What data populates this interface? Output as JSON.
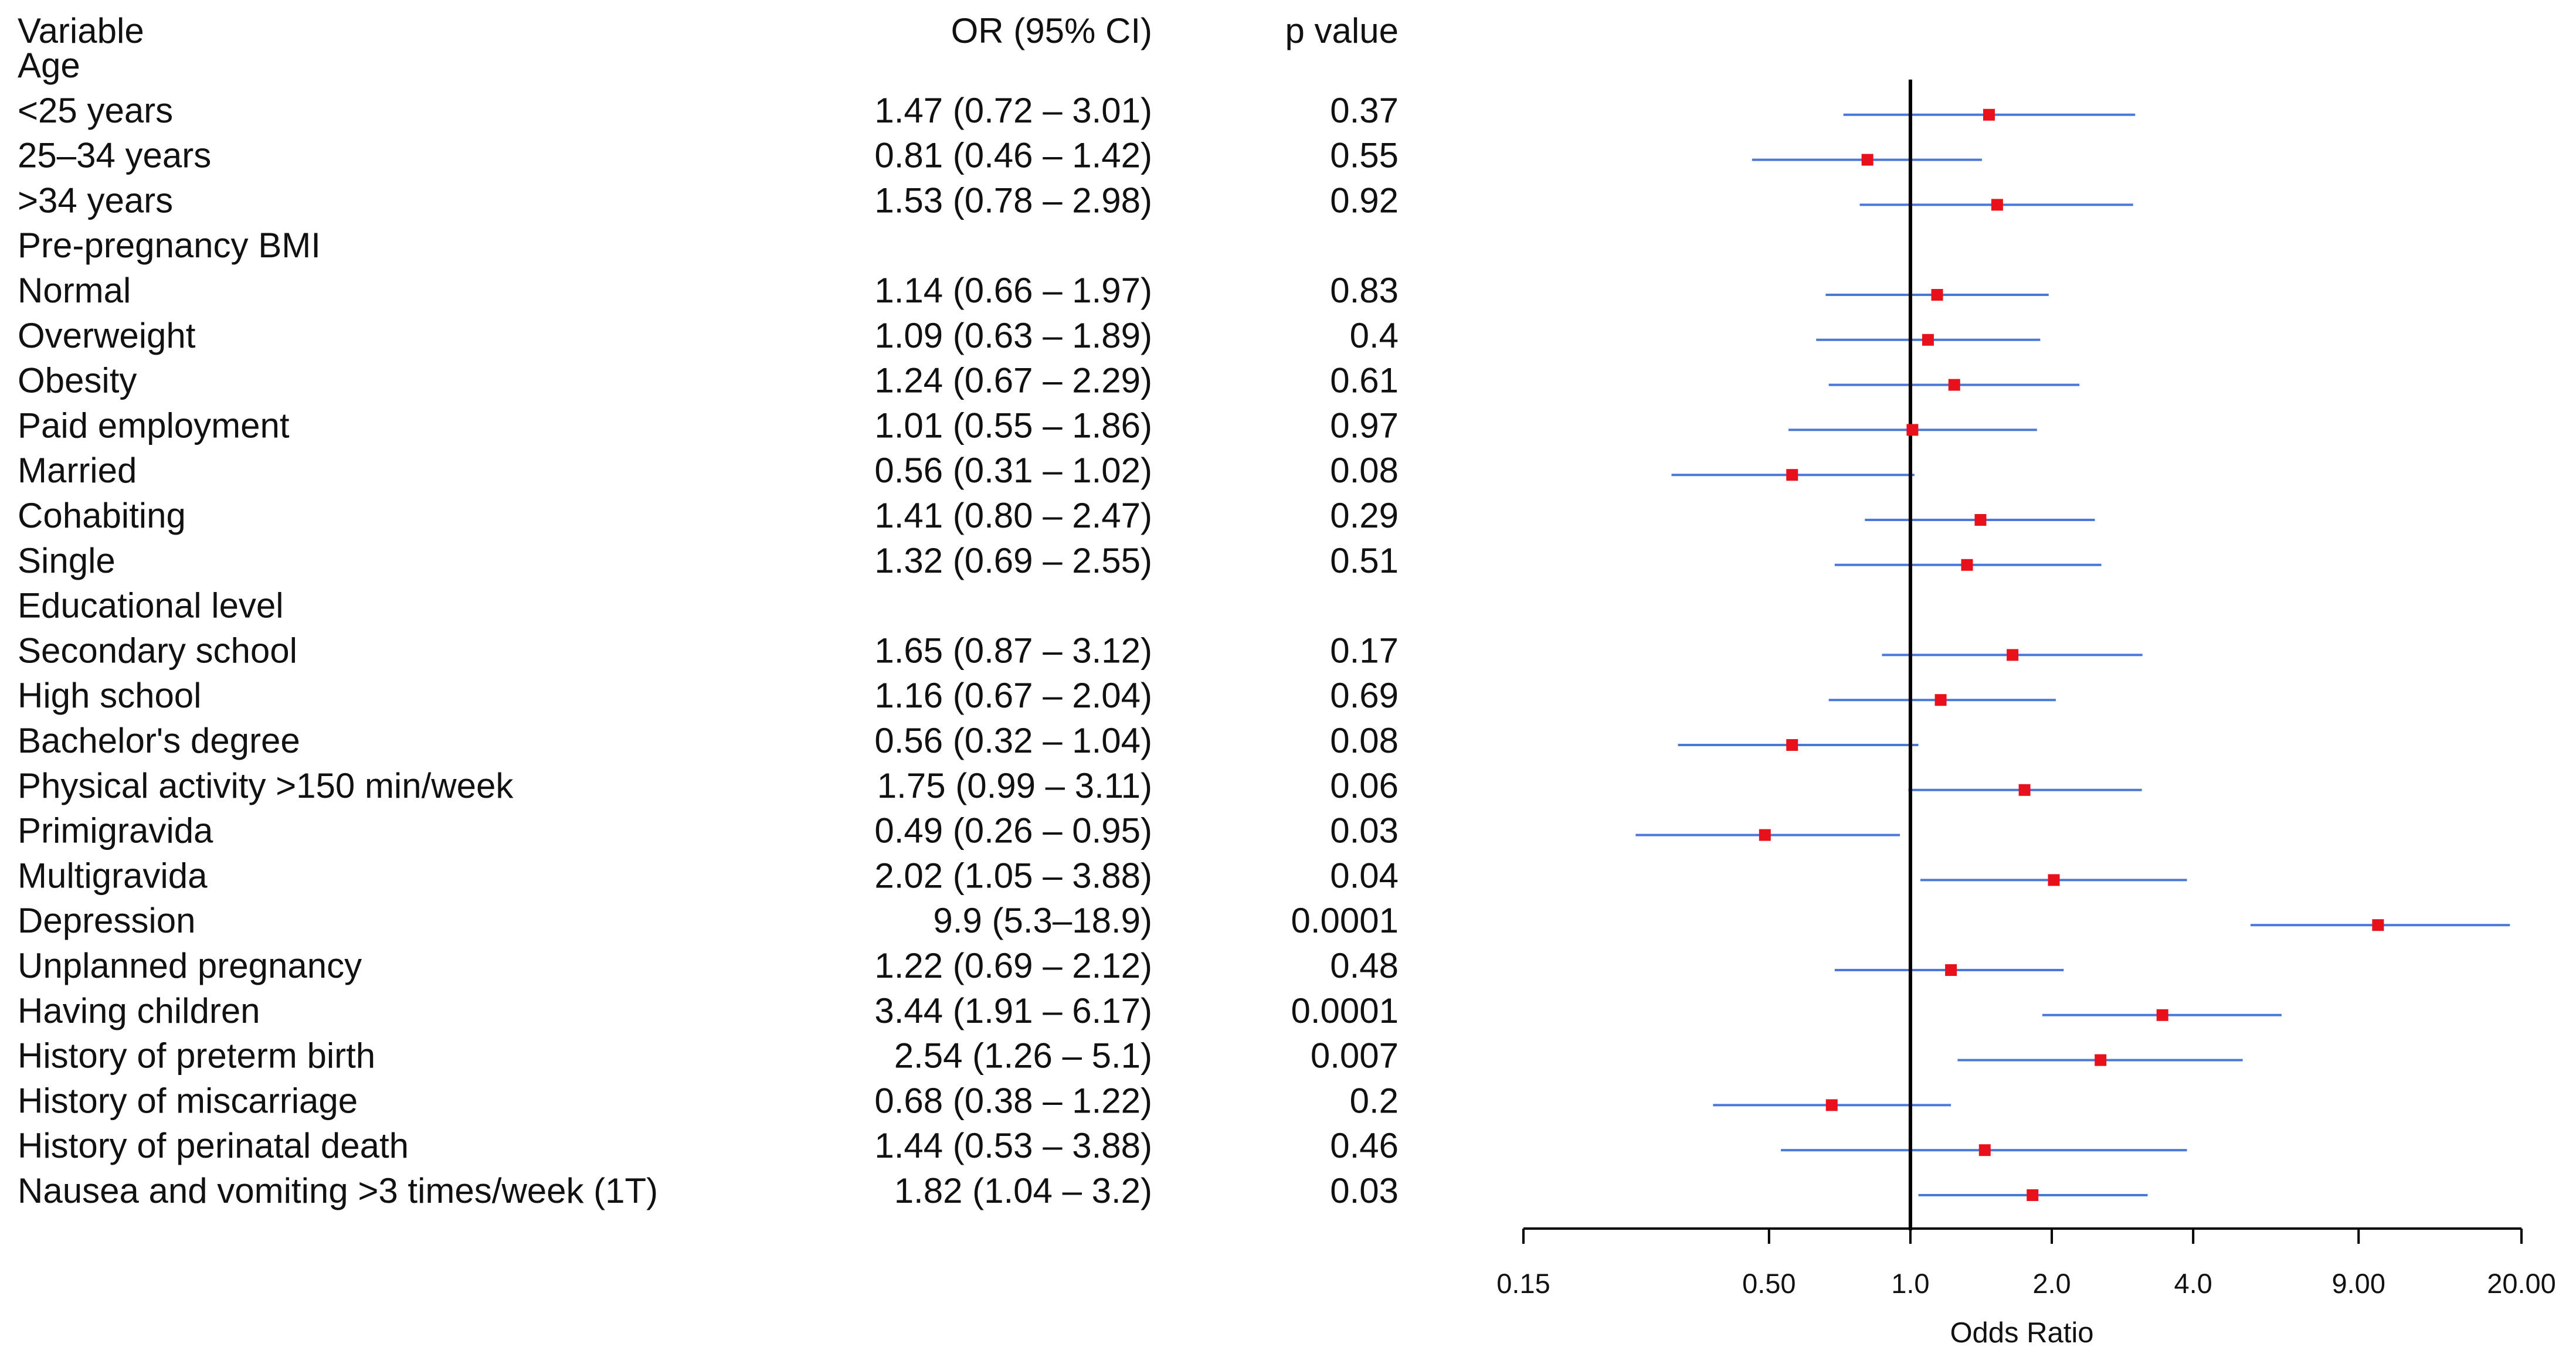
{
  "chart_data": {
    "type": "forest",
    "headers": {
      "variable": "Variable",
      "or": "OR (95% CI)",
      "p": "p value"
    },
    "xlabel": "Odds Ratio",
    "xscale": "log",
    "xlim": [
      0.15,
      20
    ],
    "reference_line": 1.0,
    "ticks": [
      {
        "value": 0.15,
        "label": "0.15"
      },
      {
        "value": 0.5,
        "label": "0.50"
      },
      {
        "value": 1.0,
        "label": "1.0"
      },
      {
        "value": 2.0,
        "label": "2.0"
      },
      {
        "value": 4.0,
        "label": "4.0"
      },
      {
        "value": 9.0,
        "label": "9.00"
      },
      {
        "value": 20.0,
        "label": "20.00"
      }
    ],
    "colors": {
      "ci": "#4a78d8",
      "point": "#e8101a",
      "axis": "#000000",
      "text": "#111111"
    },
    "rows": [
      {
        "label": "Age",
        "header": true
      },
      {
        "label": "<25 years",
        "or_text": "1.47 (0.72 – 3.01)",
        "p": "0.37",
        "or": 1.47,
        "lo": 0.72,
        "hi": 3.01
      },
      {
        "label": "25–34 years",
        "or_text": "0.81 (0.46 – 1.42)",
        "p": "0.55",
        "or": 0.81,
        "lo": 0.46,
        "hi": 1.42
      },
      {
        "label": ">34 years",
        "or_text": "1.53 (0.78 – 2.98)",
        "p": "0.92",
        "or": 1.53,
        "lo": 0.78,
        "hi": 2.98
      },
      {
        "label": "Pre-pregnancy BMI",
        "header": true
      },
      {
        "label": "Normal",
        "or_text": "1.14 (0.66 – 1.97)",
        "p": "0.83",
        "or": 1.14,
        "lo": 0.66,
        "hi": 1.97
      },
      {
        "label": "Overweight",
        "or_text": "1.09 (0.63 – 1.89)",
        "p": "0.4",
        "or": 1.09,
        "lo": 0.63,
        "hi": 1.89
      },
      {
        "label": "Obesity",
        "or_text": "1.24 (0.67 – 2.29)",
        "p": "0.61",
        "or": 1.24,
        "lo": 0.67,
        "hi": 2.29
      },
      {
        "label": "Paid employment",
        "or_text": "1.01 (0.55 – 1.86)",
        "p": "0.97",
        "or": 1.01,
        "lo": 0.55,
        "hi": 1.86
      },
      {
        "label": "Married",
        "or_text": "0.56 (0.31 – 1.02)",
        "p": "0.08",
        "or": 0.56,
        "lo": 0.31,
        "hi": 1.02
      },
      {
        "label": "Cohabiting",
        "or_text": "1.41 (0.80 – 2.47)",
        "p": "0.29",
        "or": 1.41,
        "lo": 0.8,
        "hi": 2.47
      },
      {
        "label": "Single",
        "or_text": "1.32 (0.69 – 2.55)",
        "p": "0.51",
        "or": 1.32,
        "lo": 0.69,
        "hi": 2.55
      },
      {
        "label": "Educational level",
        "header": true
      },
      {
        "label": "Secondary school",
        "or_text": "1.65 (0.87 – 3.12)",
        "p": "0.17",
        "or": 1.65,
        "lo": 0.87,
        "hi": 3.12
      },
      {
        "label": "High school",
        "or_text": "1.16 (0.67 – 2.04)",
        "p": "0.69",
        "or": 1.16,
        "lo": 0.67,
        "hi": 2.04
      },
      {
        "label": "Bachelor's degree",
        "or_text": "0.56 (0.32 – 1.04)",
        "p": "0.08",
        "or": 0.56,
        "lo": 0.32,
        "hi": 1.04
      },
      {
        "label": "Physical activity >150 min/week",
        "or_text": "1.75 (0.99 – 3.11)",
        "p": "0.06",
        "or": 1.75,
        "lo": 0.99,
        "hi": 3.11
      },
      {
        "label": "Primigravida",
        "or_text": "0.49 (0.26 – 0.95)",
        "p": "0.03",
        "or": 0.49,
        "lo": 0.26,
        "hi": 0.95
      },
      {
        "label": "Multigravida",
        "or_text": "2.02 (1.05 – 3.88)",
        "p": "0.04",
        "or": 2.02,
        "lo": 1.05,
        "hi": 3.88
      },
      {
        "label": "Depression",
        "or_text": "9.9 (5.3–18.9)",
        "p": "0.0001",
        "or": 9.9,
        "lo": 5.3,
        "hi": 18.9
      },
      {
        "label": "Unplanned pregnancy",
        "or_text": "1.22 (0.69 – 2.12)",
        "p": "0.48",
        "or": 1.22,
        "lo": 0.69,
        "hi": 2.12
      },
      {
        "label": "Having children",
        "or_text": "3.44 (1.91 – 6.17)",
        "p": "0.0001",
        "or": 3.44,
        "lo": 1.91,
        "hi": 6.17
      },
      {
        "label": "History of preterm birth",
        "or_text": "2.54 (1.26 – 5.1)",
        "p": "0.007",
        "or": 2.54,
        "lo": 1.26,
        "hi": 5.1
      },
      {
        "label": "History of miscarriage",
        "or_text": "0.68 (0.38 – 1.22)",
        "p": "0.2",
        "or": 0.68,
        "lo": 0.38,
        "hi": 1.22
      },
      {
        "label": "History of perinatal death",
        "or_text": "1.44 (0.53 – 3.88)",
        "p": "0.46",
        "or": 1.44,
        "lo": 0.53,
        "hi": 3.88
      },
      {
        "label": "Nausea and vomiting >3 times/week (1T)",
        "or_text": "1.82 (1.04 – 3.2)",
        "p": "0.03",
        "or": 1.82,
        "lo": 1.04,
        "hi": 3.2
      }
    ]
  }
}
